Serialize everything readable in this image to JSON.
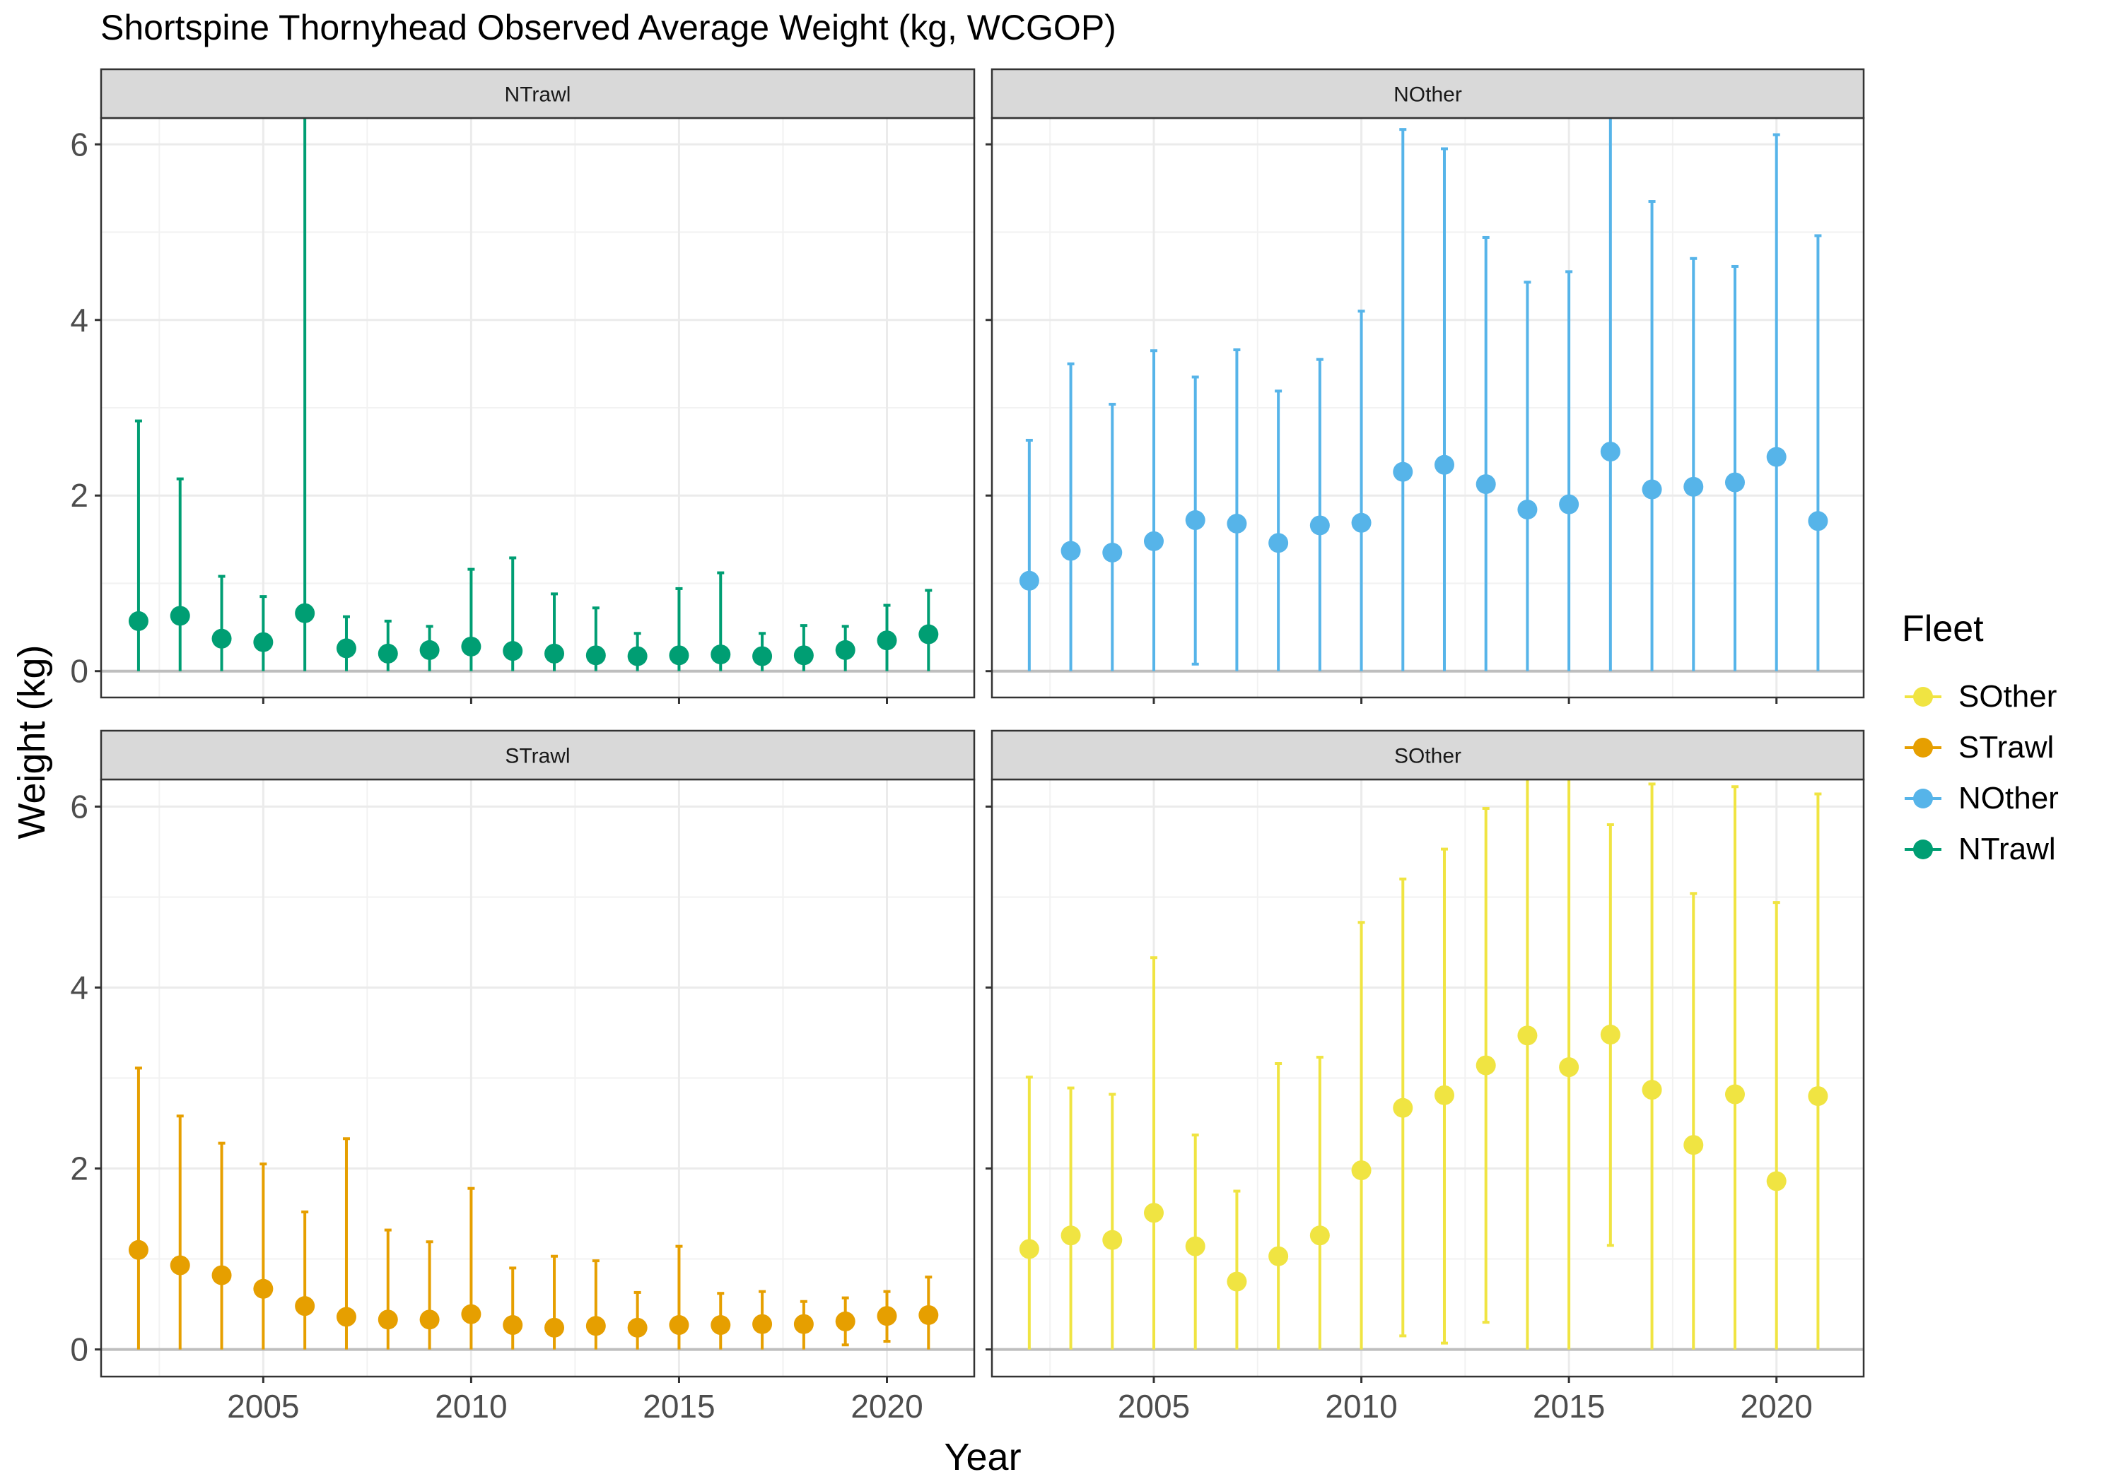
{
  "chart_data": {
    "type": "scatter",
    "title": "Shortspine Thornyhead Observed Average Weight (kg, WCGOP)",
    "xlabel": "Year",
    "ylabel": "Weight (kg)",
    "x_ticks": [
      2005,
      2010,
      2015,
      2020
    ],
    "y_ticks": [
      0,
      2,
      4,
      6
    ],
    "xlim": [
      2001.1,
      2022.1
    ],
    "ylim": [
      -0.3,
      6.3
    ],
    "error_bars": true,
    "legend": {
      "title": "Fleet",
      "position": "right",
      "entries": [
        {
          "label": "SOther",
          "color": "#F0E442"
        },
        {
          "label": "STrawl",
          "color": "#E69F00"
        },
        {
          "label": "NOther",
          "color": "#56B4E9"
        },
        {
          "label": "NTrawl",
          "color": "#009E73"
        }
      ]
    },
    "panels": [
      {
        "label": "NTrawl",
        "color": "#009E73",
        "x": [
          2002,
          2003,
          2004,
          2005,
          2006,
          2007,
          2008,
          2009,
          2010,
          2011,
          2012,
          2013,
          2014,
          2015,
          2016,
          2017,
          2018,
          2019,
          2020,
          2021
        ],
        "y": [
          0.57,
          0.63,
          0.37,
          0.33,
          0.66,
          0.26,
          0.2,
          0.24,
          0.28,
          0.23,
          0.2,
          0.18,
          0.17,
          0.18,
          0.19,
          0.17,
          0.18,
          0.24,
          0.35,
          0.42
        ],
        "lower": [
          0,
          0,
          0,
          0,
          0,
          0,
          0,
          0,
          0,
          0,
          0,
          0,
          0,
          0,
          0,
          0,
          0,
          0,
          0,
          0
        ],
        "upper": [
          2.85,
          2.19,
          1.08,
          0.85,
          6.3,
          0.62,
          0.57,
          0.51,
          1.16,
          1.29,
          0.88,
          0.72,
          0.43,
          0.94,
          1.12,
          0.43,
          0.52,
          0.51,
          0.75,
          0.92
        ]
      },
      {
        "label": "NOther",
        "color": "#56B4E9",
        "x": [
          2002,
          2003,
          2004,
          2005,
          2006,
          2007,
          2008,
          2009,
          2010,
          2011,
          2012,
          2013,
          2014,
          2015,
          2016,
          2017,
          2018,
          2019,
          2020,
          2021
        ],
        "y": [
          1.03,
          1.37,
          1.35,
          1.48,
          1.72,
          1.68,
          1.46,
          1.66,
          1.69,
          2.27,
          2.35,
          2.13,
          1.84,
          1.9,
          2.5,
          2.07,
          2.1,
          2.15,
          2.44,
          1.71
        ],
        "lower": [
          0,
          0,
          0,
          0,
          0.08,
          0,
          0,
          0,
          0,
          0,
          0,
          0,
          0,
          0,
          0,
          0,
          0,
          0,
          0,
          0
        ],
        "upper": [
          2.63,
          3.5,
          3.04,
          3.65,
          3.35,
          3.66,
          3.19,
          3.55,
          4.1,
          6.17,
          5.95,
          4.94,
          4.43,
          4.55,
          6.3,
          5.35,
          4.7,
          4.61,
          6.11,
          4.96
        ]
      },
      {
        "label": "STrawl",
        "color": "#E69F00",
        "x": [
          2002,
          2003,
          2004,
          2005,
          2006,
          2007,
          2008,
          2009,
          2010,
          2011,
          2012,
          2013,
          2014,
          2015,
          2016,
          2017,
          2018,
          2019,
          2020,
          2021
        ],
        "y": [
          1.1,
          0.93,
          0.82,
          0.67,
          0.48,
          0.36,
          0.33,
          0.33,
          0.39,
          0.27,
          0.24,
          0.26,
          0.24,
          0.27,
          0.27,
          0.28,
          0.28,
          0.31,
          0.37,
          0.38
        ],
        "lower": [
          0,
          0,
          0,
          0,
          0,
          0,
          0,
          0,
          0,
          0,
          0,
          0,
          0,
          0,
          0,
          0,
          0,
          0.05,
          0.09,
          0
        ],
        "upper": [
          3.11,
          2.58,
          2.28,
          2.05,
          1.52,
          2.33,
          1.32,
          1.19,
          1.78,
          0.9,
          1.03,
          0.98,
          0.63,
          1.14,
          0.62,
          0.64,
          0.53,
          0.57,
          0.64,
          0.8
        ]
      },
      {
        "label": "SOther",
        "color": "#F0E442",
        "x": [
          2002,
          2003,
          2004,
          2005,
          2006,
          2007,
          2008,
          2009,
          2010,
          2011,
          2012,
          2013,
          2014,
          2015,
          2016,
          2017,
          2018,
          2019,
          2020,
          2021
        ],
        "y": [
          1.11,
          1.26,
          1.21,
          1.51,
          1.14,
          0.75,
          1.03,
          1.26,
          1.98,
          2.67,
          2.81,
          3.14,
          3.47,
          3.12,
          3.48,
          2.87,
          2.26,
          2.82,
          1.86,
          2.8
        ],
        "lower": [
          0,
          0,
          0,
          0,
          0,
          0,
          0,
          0,
          0,
          0.15,
          0.07,
          0.3,
          0,
          0,
          1.15,
          0,
          0,
          0,
          0,
          0
        ],
        "upper": [
          3.01,
          2.89,
          2.82,
          4.33,
          2.37,
          1.75,
          3.16,
          3.23,
          4.72,
          5.2,
          5.53,
          5.98,
          6.3,
          6.3,
          5.8,
          6.25,
          5.04,
          6.22,
          4.94,
          6.14
        ]
      }
    ]
  }
}
